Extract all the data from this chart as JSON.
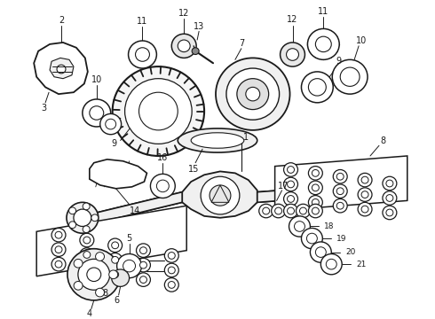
{
  "bg_color": "#ffffff",
  "fg_color": "#1a1a1a",
  "fig_width": 4.9,
  "fig_height": 3.6,
  "dpi": 100
}
